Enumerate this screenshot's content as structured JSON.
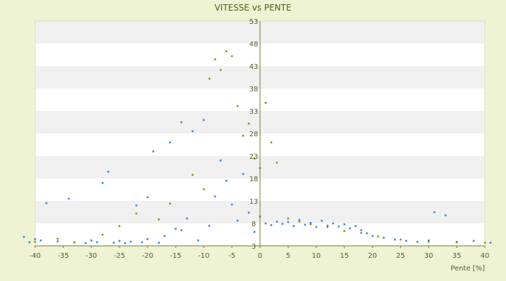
{
  "chart_data": {
    "type": "scatter",
    "title": "VITESSE vs PENTE",
    "xlabel": "Pente [%]",
    "ylabel": "",
    "xlim": [
      -40,
      40
    ],
    "ylim": [
      3,
      53
    ],
    "x_ticks": [
      -40,
      -35,
      -30,
      -25,
      -20,
      -15,
      -10,
      -5,
      0,
      5,
      10,
      15,
      20,
      25,
      30,
      35,
      40
    ],
    "y_ticks": [
      3,
      8,
      13,
      18,
      23,
      28,
      33,
      38,
      43,
      48,
      53
    ],
    "grid": "horizontal alternating bands",
    "legend": "none",
    "colors": {
      "background": "#eef3d4",
      "band_light": "#ffffff",
      "band_dark": "#f0f0f0",
      "blue_points": "#3a86d6",
      "olive_points": "#8a8f1e",
      "axis": "#707a2e"
    },
    "series": [
      {
        "color": "#3a86d6",
        "values": [
          [
            -42,
            5
          ],
          [
            -41,
            3.8
          ],
          [
            -40,
            4.5
          ],
          [
            -39,
            4.2
          ],
          [
            -38,
            12.5
          ],
          [
            -36,
            4
          ],
          [
            -34,
            13.5
          ],
          [
            -33,
            3.8
          ],
          [
            -31,
            3.6
          ],
          [
            -30,
            4.2
          ],
          [
            -29,
            3.8
          ],
          [
            -28,
            17
          ],
          [
            -27,
            19.5
          ],
          [
            -26,
            3.7
          ],
          [
            -25,
            4.1
          ],
          [
            -24,
            3.6
          ],
          [
            -23,
            3.9
          ],
          [
            -22,
            12
          ],
          [
            -21,
            3.8
          ],
          [
            -20,
            4.5
          ],
          [
            -19,
            24
          ],
          [
            -18,
            3.7
          ],
          [
            -17,
            5.2
          ],
          [
            -16,
            26
          ],
          [
            -15,
            6.8
          ],
          [
            -14,
            30.5
          ],
          [
            -13,
            9.1
          ],
          [
            -12,
            28.5
          ],
          [
            -11,
            4.2
          ],
          [
            -10,
            31
          ],
          [
            -9,
            7.5
          ],
          [
            -8,
            14
          ],
          [
            -7,
            22
          ],
          [
            -6,
            17.5
          ],
          [
            -5,
            12.2
          ],
          [
            -4,
            8.6
          ],
          [
            -3,
            19
          ],
          [
            -2,
            10.4
          ],
          [
            -1,
            6.1
          ],
          [
            0,
            9.5
          ],
          [
            1,
            8
          ],
          [
            2,
            7.6
          ],
          [
            3,
            8.4
          ],
          [
            4,
            7.9
          ],
          [
            5,
            8.3
          ],
          [
            6,
            7.4
          ],
          [
            7,
            8.8
          ],
          [
            8,
            7.7
          ],
          [
            9,
            8.1
          ],
          [
            10,
            7.2
          ],
          [
            11,
            8.6
          ],
          [
            12,
            7.5
          ],
          [
            13,
            8
          ],
          [
            14,
            7.3
          ],
          [
            15,
            7.8
          ],
          [
            16,
            6.9
          ],
          [
            17,
            7.4
          ],
          [
            18,
            6.5
          ],
          [
            19,
            5.8
          ],
          [
            20,
            5.2
          ],
          [
            22,
            4.8
          ],
          [
            24,
            4.4
          ],
          [
            26,
            4.1
          ],
          [
            28,
            3.9
          ],
          [
            30,
            4.2
          ],
          [
            31,
            10.5
          ],
          [
            33,
            9.8
          ],
          [
            35,
            3.9
          ],
          [
            38,
            4.1
          ],
          [
            41,
            3.7
          ]
        ]
      },
      {
        "color": "#8a8f1e",
        "values": [
          [
            -40,
            3.9
          ],
          [
            -36,
            4.6
          ],
          [
            -33,
            3.8
          ],
          [
            -28,
            5.5
          ],
          [
            -25,
            7.4
          ],
          [
            -22,
            10.2
          ],
          [
            -20,
            13.8
          ],
          [
            -18,
            8.9
          ],
          [
            -16,
            12.4
          ],
          [
            -14,
            6.5
          ],
          [
            -12,
            18.8
          ],
          [
            -10,
            15.6
          ],
          [
            -9,
            40.2
          ],
          [
            -8,
            44.5
          ],
          [
            -7,
            42.1
          ],
          [
            -6,
            46.3
          ],
          [
            -5,
            45.2
          ],
          [
            -4,
            34.1
          ],
          [
            -3,
            27.5
          ],
          [
            -2,
            30.2
          ],
          [
            -1,
            22.4
          ],
          [
            0,
            20.3
          ],
          [
            1,
            34.8
          ],
          [
            2,
            26
          ],
          [
            3,
            21.5
          ],
          [
            5,
            9.1
          ],
          [
            7,
            8.4
          ],
          [
            9,
            7.8
          ],
          [
            12,
            7.2
          ],
          [
            15,
            6.3
          ],
          [
            18,
            5.9
          ],
          [
            21,
            5.1
          ],
          [
            25,
            4.4
          ],
          [
            30,
            3.9
          ],
          [
            35,
            3.8
          ],
          [
            40,
            3.7
          ]
        ]
      }
    ]
  }
}
